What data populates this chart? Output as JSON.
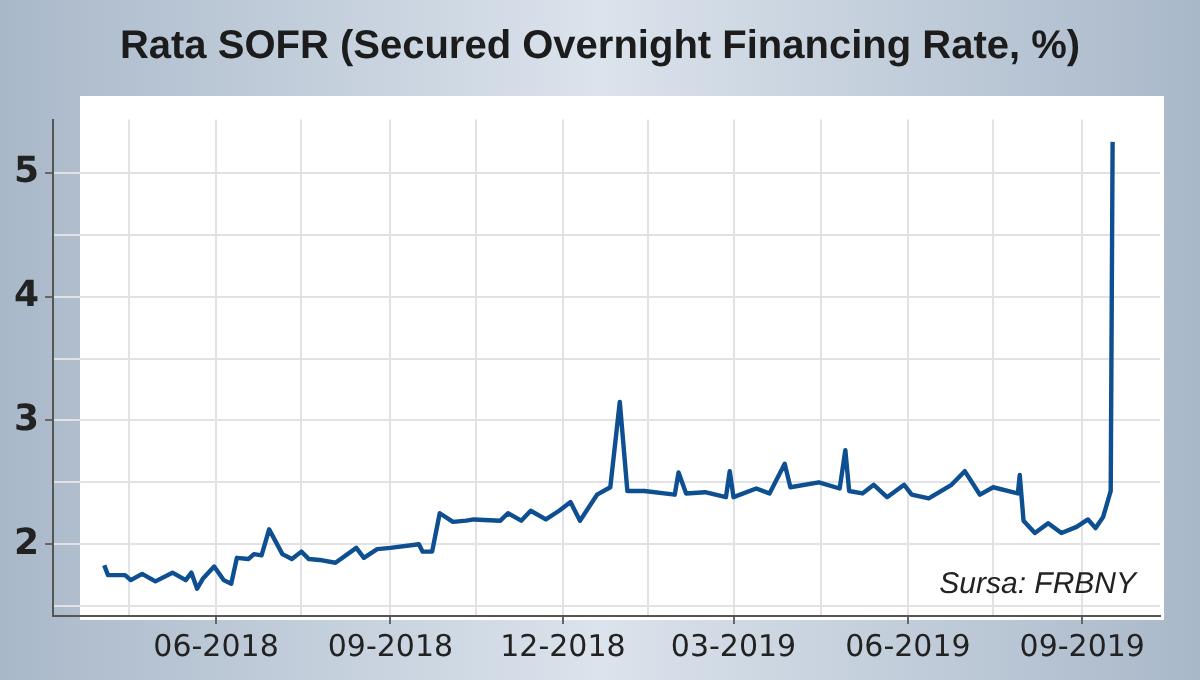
{
  "chart_data": {
    "type": "line",
    "title": "Rata SOFR (Secured Overnight Financing Rate, %)",
    "x": [
      "2018-04-03",
      "2018-04-05",
      "2018-04-14",
      "2018-04-17",
      "2018-04-23",
      "2018-04-30",
      "2018-05-09",
      "2018-05-16",
      "2018-05-19",
      "2018-05-22",
      "2018-05-25",
      "2018-05-31",
      "2018-06-05",
      "2018-06-09",
      "2018-06-12",
      "2018-06-18",
      "2018-06-21",
      "2018-06-25",
      "2018-06-29",
      "2018-07-06",
      "2018-07-11",
      "2018-07-16",
      "2018-07-20",
      "2018-07-27",
      "2018-08-03",
      "2018-08-14",
      "2018-08-18",
      "2018-08-25",
      "2018-09-01",
      "2018-09-16",
      "2018-09-18",
      "2018-09-23",
      "2018-09-27",
      "2018-10-04",
      "2018-10-11",
      "2018-10-15",
      "2018-10-29",
      "2018-11-02",
      "2018-11-09",
      "2018-11-14",
      "2018-11-22",
      "2018-11-29",
      "2018-12-05",
      "2018-12-10",
      "2018-12-19",
      "2018-12-26",
      "2018-12-31",
      "2019-01-04",
      "2019-01-13",
      "2019-01-29",
      "2019-01-31",
      "2019-02-04",
      "2019-02-14",
      "2019-02-25",
      "2019-02-27",
      "2019-03-01",
      "2019-03-13",
      "2019-03-20",
      "2019-03-28",
      "2019-03-31",
      "2019-04-15",
      "2019-04-26",
      "2019-04-29",
      "2019-05-01",
      "2019-05-08",
      "2019-05-14",
      "2019-05-21",
      "2019-05-30",
      "2019-06-03",
      "2019-06-12",
      "2019-06-24",
      "2019-07-01",
      "2019-07-09",
      "2019-07-16",
      "2019-07-29",
      "2019-07-30",
      "2019-08-01",
      "2019-08-07",
      "2019-08-14",
      "2019-08-21",
      "2019-08-29",
      "2019-09-04",
      "2019-09-08",
      "2019-09-12",
      "2019-09-16",
      "2019-09-17"
    ],
    "series": [
      {
        "color": "#0d4f91",
        "values": [
          1.83,
          1.75,
          1.75,
          1.71,
          1.76,
          1.7,
          1.77,
          1.71,
          1.77,
          1.64,
          1.72,
          1.82,
          1.71,
          1.68,
          1.89,
          1.88,
          1.92,
          1.91,
          2.12,
          1.92,
          1.88,
          1.94,
          1.88,
          1.87,
          1.85,
          1.97,
          1.89,
          1.96,
          1.97,
          2.0,
          1.94,
          1.94,
          2.25,
          2.18,
          2.19,
          2.2,
          2.19,
          2.25,
          2.19,
          2.27,
          2.2,
          2.27,
          2.34,
          2.19,
          2.4,
          2.46,
          3.15,
          2.43,
          2.43,
          2.4,
          2.58,
          2.41,
          2.42,
          2.38,
          2.59,
          2.38,
          2.45,
          2.41,
          2.65,
          2.46,
          2.5,
          2.45,
          2.76,
          2.43,
          2.41,
          2.48,
          2.38,
          2.48,
          2.4,
          2.37,
          2.48,
          2.59,
          2.4,
          2.46,
          2.41,
          2.56,
          2.19,
          2.09,
          2.17,
          2.09,
          2.14,
          2.2,
          2.13,
          2.22,
          2.43,
          5.25
        ]
      }
    ],
    "xlim": [
      "2018-03-07",
      "2019-10-12"
    ],
    "xticks": [
      {
        "value": "2018-04-16",
        "label": null
      },
      {
        "value": "2018-06-01",
        "label": "06-2018"
      },
      {
        "value": "2018-07-16",
        "label": null
      },
      {
        "value": "2018-09-01",
        "label": "09-2018"
      },
      {
        "value": "2018-10-16",
        "label": null
      },
      {
        "value": "2018-12-01",
        "label": "12-2018"
      },
      {
        "value": "2019-01-15",
        "label": null
      },
      {
        "value": "2019-03-01",
        "label": "03-2019"
      },
      {
        "value": "2019-04-16",
        "label": null
      },
      {
        "value": "2019-06-01",
        "label": "06-2019"
      },
      {
        "value": "2019-07-16",
        "label": null
      },
      {
        "value": "2019-09-01",
        "label": "09-2019"
      }
    ],
    "ylim": [
      1.42,
      5.43
    ],
    "yticks": [
      {
        "value": 1.5,
        "label": null
      },
      2,
      {
        "value": 2.5,
        "label": null
      },
      3,
      {
        "value": 3.5,
        "label": null
      },
      4,
      {
        "value": 4.5,
        "label": null
      },
      5
    ],
    "grid": true,
    "legend": false,
    "marker": "none",
    "line_style": "solid",
    "annotations": [
      "Sursa: FRBNY"
    ]
  }
}
